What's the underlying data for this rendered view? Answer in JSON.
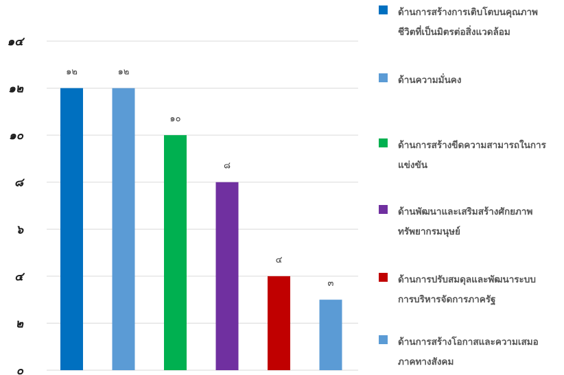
{
  "chart_data": {
    "type": "bar",
    "categories": [
      "ด้านการสร้างการเติบโตบนคุณภาพชีวิตที่เป็นมิตรต่อสิ่งแวดล้อม",
      "ด้านความมั่นคง",
      "ด้านการสร้างขีดความสามารถในการแข่งขัน",
      "ด้านพัฒนาและเสริมสร้างศักยภาพทรัพยากรมนุษย์",
      "ด้านการปรับสมดุลและพัฒนาระบบการบริหารจัดการภาครัฐ",
      "ด้านการสร้างโอกาสและความเสมอภาคทางสังคม"
    ],
    "values": [
      12,
      12,
      10,
      8,
      4,
      3
    ],
    "data_labels": [
      "๑๒",
      "๑๒",
      "๑๐",
      "๘",
      "๔",
      "๓"
    ],
    "colors": [
      "#0070C0",
      "#5B9BD5",
      "#00B050",
      "#7030A0",
      "#C00000",
      "#5B9BD5"
    ],
    "ylim": [
      0,
      14
    ],
    "yticks": [
      0,
      2,
      4,
      6,
      8,
      10,
      12,
      14
    ],
    "ytick_labels": [
      "๐",
      "๒",
      "๔",
      "๖",
      "๘",
      "๑๐",
      "๑๒",
      "๑๔"
    ],
    "grid": true,
    "legend_position": "right",
    "title": "",
    "xlabel": "",
    "ylabel": ""
  },
  "legend": {
    "items": [
      {
        "line1": "ด้านการสร้างการเติบโตบนคุณภาพ",
        "line2": "ชีวิตที่เป็นมิตรต่อสิ่งแวดล้อม",
        "color": "#0070C0"
      },
      {
        "line1": "ด้านความมั่นคง",
        "line2": "",
        "color": "#5B9BD5"
      },
      {
        "line1": "ด้านการสร้างขีดความสามารถในการ",
        "line2": "แข่งขัน",
        "color": "#00B050"
      },
      {
        "line1": "ด้านพัฒนาและเสริมสร้างศักยภาพ",
        "line2": "ทรัพยากรมนุษย์",
        "color": "#7030A0"
      },
      {
        "line1": "ด้านการปรับสมดุลและพัฒนาระบบ",
        "line2": "การบริหารจัดการภาครัฐ",
        "color": "#C00000"
      },
      {
        "line1": "ด้านการสร้างโอกาสและความเสมอ",
        "line2": "ภาคทางสังคม",
        "color": "#5B9BD5"
      }
    ]
  }
}
